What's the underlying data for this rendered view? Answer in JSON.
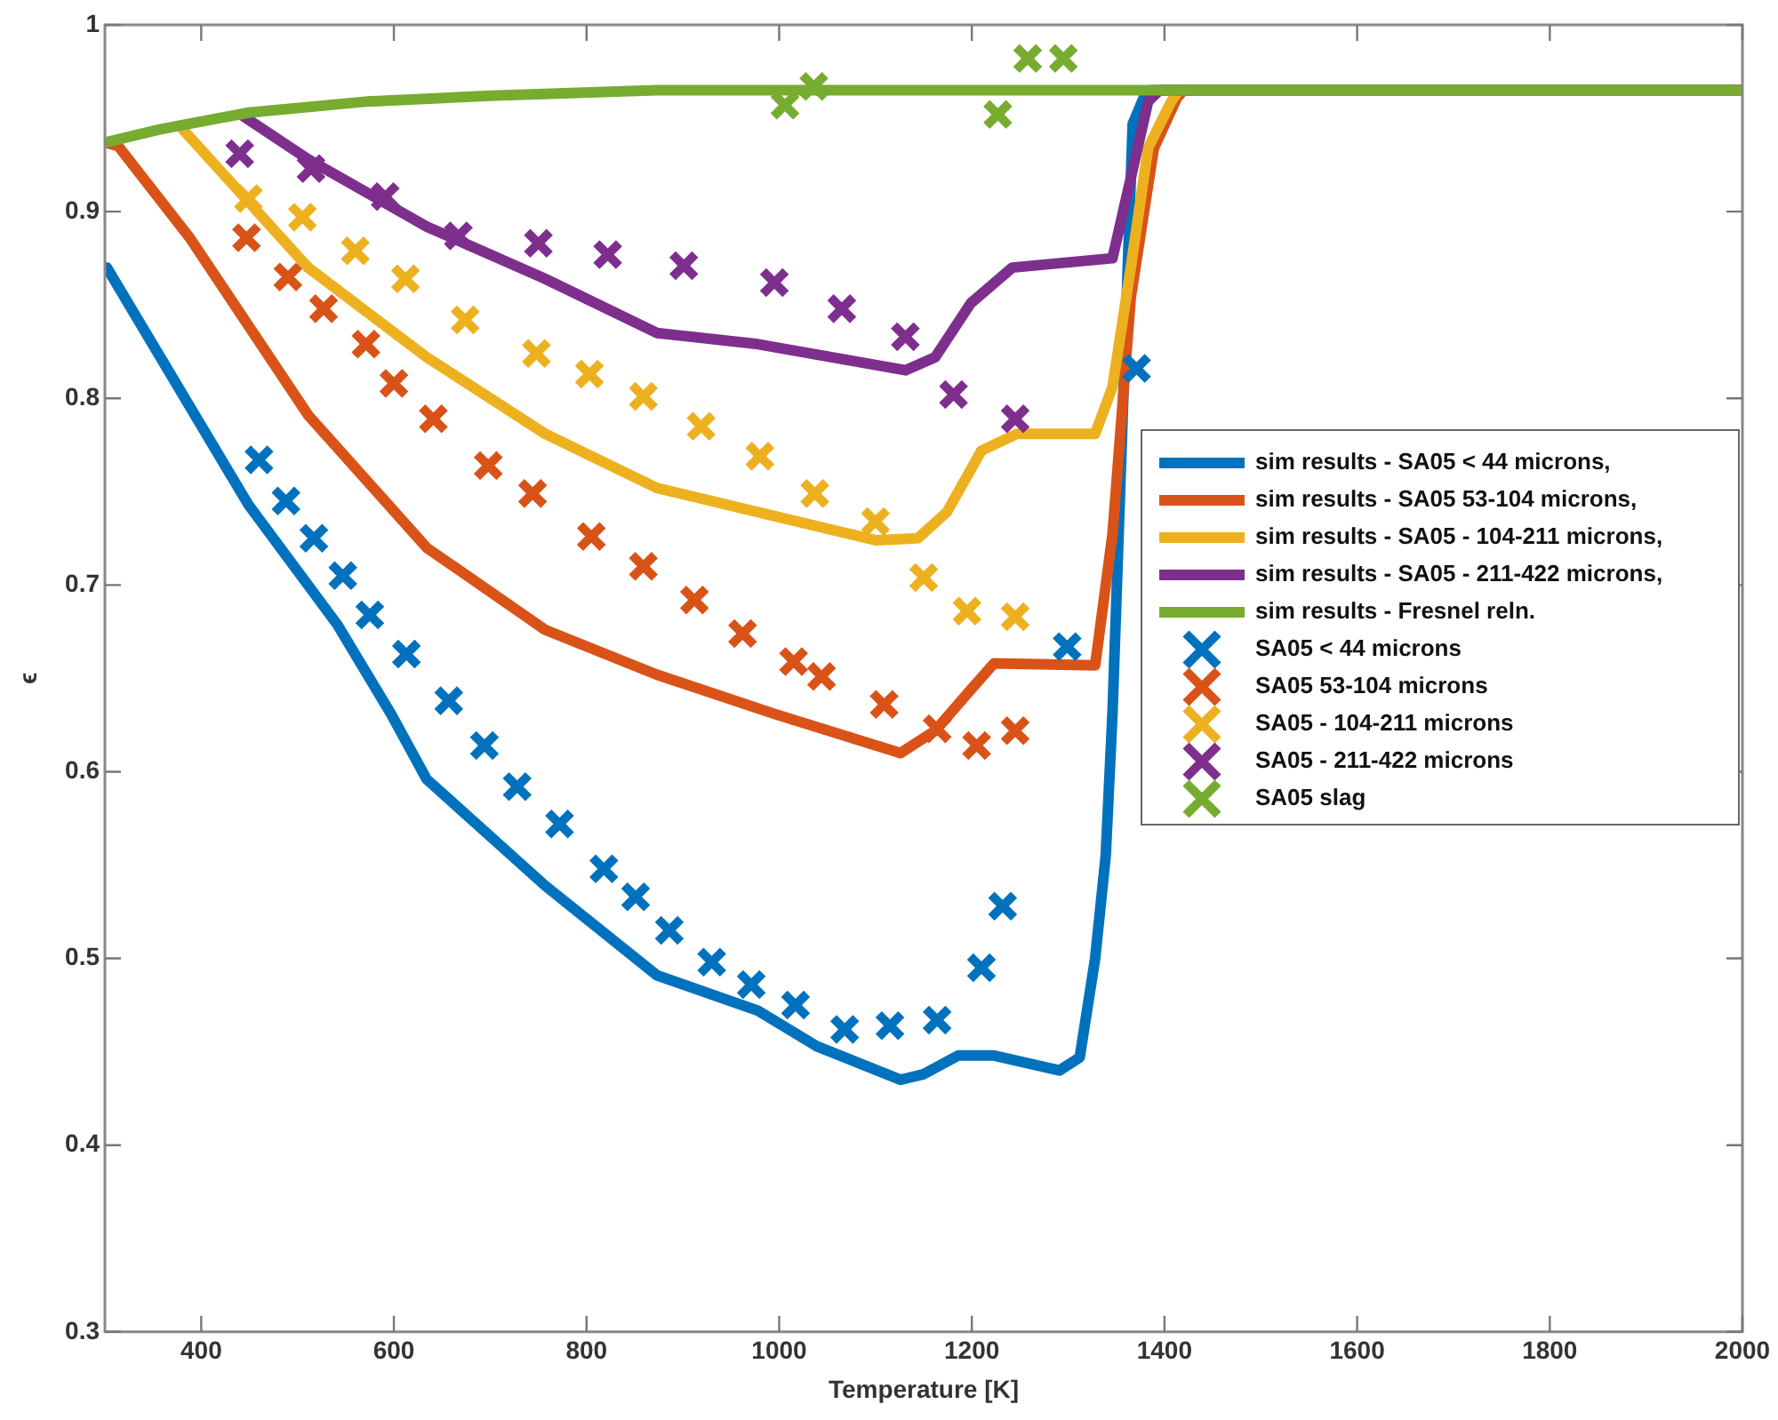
{
  "chart_data": {
    "type": "line",
    "xlabel": "Temperature [K]",
    "ylabel": "ϵ",
    "xlim": [
      300,
      2000
    ],
    "ylim": [
      0.3,
      1
    ],
    "xticks": [
      400,
      600,
      800,
      1000,
      1200,
      1400,
      1600,
      1800,
      2000
    ],
    "yticks": [
      0.3,
      0.4,
      0.5,
      0.6,
      0.7,
      0.8,
      0.9,
      1
    ],
    "grid": false,
    "legend": "right",
    "line_style": "solid",
    "series": [
      {
        "name": "sim results - SA05 < 44 microns,",
        "type": "line",
        "marker": "none",
        "color": "#0072bd",
        "x": [
          302,
          449,
          541,
          597,
          634,
          757,
          873,
          978,
          1039,
          1126,
          1150,
          1186,
          1223,
          1291,
          1312,
          1328,
          1339,
          1346,
          1367,
          1380,
          1385,
          2000
        ],
        "values": [
          0.87,
          0.743,
          0.679,
          0.631,
          0.596,
          0.539,
          0.491,
          0.472,
          0.453,
          0.435,
          0.438,
          0.448,
          0.448,
          0.44,
          0.447,
          0.5,
          0.555,
          0.631,
          0.947,
          0.963,
          0.965,
          0.965
        ]
      },
      {
        "name": "sim results - SA05 53-104 microns,",
        "type": "line",
        "marker": "none",
        "color": "#d95319",
        "x": [
          300,
          314,
          388,
          511,
          634,
          757,
          873,
          995,
          1126,
          1162,
          1199,
          1223,
          1328,
          1346,
          1365,
          1389,
          1413,
          1420,
          2000
        ],
        "values": [
          0.937,
          0.935,
          0.886,
          0.791,
          0.72,
          0.676,
          0.652,
          0.631,
          0.61,
          0.622,
          0.644,
          0.658,
          0.657,
          0.727,
          0.854,
          0.934,
          0.961,
          0.965,
          0.965
        ]
      },
      {
        "name": "sim results - SA05 - 104-211 microns,",
        "type": "line",
        "marker": "none",
        "color": "#edb120",
        "x": [
          381,
          511,
          634,
          757,
          873,
          978,
          1100,
          1144,
          1174,
          1210,
          1247,
          1328,
          1346,
          1365,
          1383,
          1407,
          1415,
          2000
        ],
        "values": [
          0.944,
          0.87,
          0.822,
          0.781,
          0.752,
          0.739,
          0.724,
          0.725,
          0.739,
          0.772,
          0.781,
          0.781,
          0.806,
          0.87,
          0.934,
          0.959,
          0.965,
          0.965
        ]
      },
      {
        "name": "sim results - SA05 - 211-422 microns,",
        "type": "line",
        "marker": "none",
        "color": "#7e2f8e",
        "x": [
          444,
          511,
          634,
          757,
          873,
          978,
          1131,
          1162,
          1199,
          1242,
          1346,
          1365,
          1383,
          1395,
          2000
        ],
        "values": [
          0.951,
          0.928,
          0.892,
          0.864,
          0.835,
          0.829,
          0.815,
          0.822,
          0.851,
          0.87,
          0.875,
          0.918,
          0.959,
          0.965,
          0.965
        ]
      },
      {
        "name": "sim results - Fresnel reln.",
        "type": "line",
        "marker": "none",
        "color": "#77ac30",
        "x": [
          300,
          357,
          449,
          573,
          700,
          873,
          2000
        ],
        "values": [
          0.937,
          0.944,
          0.953,
          0.959,
          0.962,
          0.965,
          0.965
        ]
      },
      {
        "name": "SA05 < 44 microns",
        "type": "scatter",
        "marker": "cross",
        "color": "#0072bd",
        "x": [
          460,
          488,
          517,
          547,
          575,
          613,
          657,
          694,
          728,
          772,
          818,
          851,
          886,
          930,
          971,
          1017,
          1068,
          1115,
          1164,
          1210,
          1232,
          1299,
          1371
        ],
        "values": [
          0.767,
          0.745,
          0.725,
          0.705,
          0.684,
          0.663,
          0.638,
          0.614,
          0.592,
          0.572,
          0.548,
          0.533,
          0.515,
          0.498,
          0.486,
          0.475,
          0.462,
          0.464,
          0.467,
          0.495,
          0.528,
          0.667,
          0.816
        ]
      },
      {
        "name": "SA05 53-104 microns",
        "type": "scatter",
        "marker": "cross",
        "color": "#d95319",
        "x": [
          447,
          490,
          527,
          571,
          600,
          641,
          698,
          744,
          805,
          859,
          912,
          962,
          1015,
          1044,
          1109,
          1164,
          1205,
          1245
        ],
        "values": [
          0.886,
          0.865,
          0.848,
          0.829,
          0.808,
          0.789,
          0.764,
          0.749,
          0.726,
          0.71,
          0.692,
          0.674,
          0.659,
          0.651,
          0.636,
          0.623,
          0.614,
          0.622
        ]
      },
      {
        "name": "SA05 - 104-211 microns",
        "type": "scatter",
        "marker": "cross",
        "color": "#edb120",
        "x": [
          449,
          505,
          560,
          612,
          674,
          748,
          803,
          859,
          919,
          980,
          1037,
          1100,
          1150,
          1195,
          1245
        ],
        "values": [
          0.907,
          0.897,
          0.879,
          0.864,
          0.842,
          0.824,
          0.813,
          0.801,
          0.785,
          0.769,
          0.749,
          0.734,
          0.704,
          0.686,
          0.683
        ]
      },
      {
        "name": "SA05 - 211-422 microns",
        "type": "scatter",
        "marker": "cross",
        "color": "#7e2f8e",
        "x": [
          440,
          514,
          591,
          667,
          750,
          822,
          901,
          995,
          1065,
          1131,
          1181,
          1245
        ],
        "values": [
          0.931,
          0.923,
          0.908,
          0.887,
          0.883,
          0.877,
          0.871,
          0.862,
          0.848,
          0.833,
          0.802,
          0.789
        ]
      },
      {
        "name": "SA05 slag",
        "type": "scatter",
        "marker": "cross",
        "color": "#77ac30",
        "x": [
          1006,
          1036,
          1227,
          1258,
          1295
        ],
        "values": [
          0.957,
          0.967,
          0.952,
          0.982,
          0.982
        ]
      }
    ]
  }
}
